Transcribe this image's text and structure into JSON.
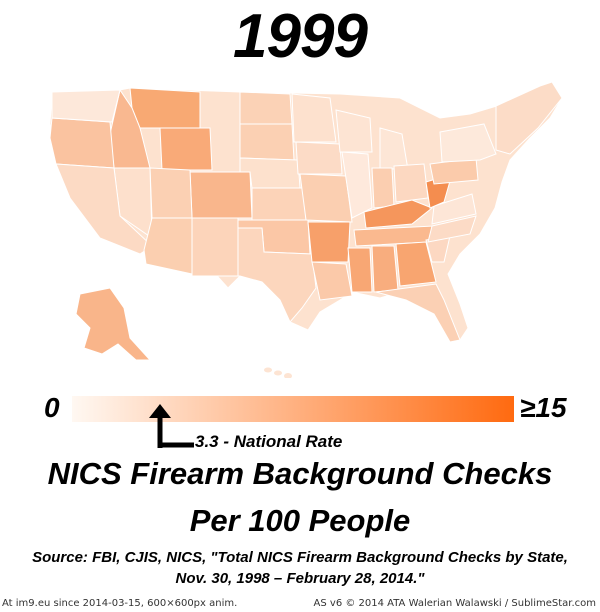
{
  "year": "1999",
  "legend": {
    "min_label": "0",
    "max_label": "≥15",
    "min_value": 0,
    "max_value": 15,
    "color_low": "#fff8f2",
    "color_high": "#ff6a10"
  },
  "national_rate": {
    "value": 3.3,
    "label": "3.3 - National Rate"
  },
  "title": {
    "line1": "NICS Firearm Background Checks",
    "line2": "Per 100 People"
  },
  "source": {
    "line1": "Source: FBI, CJIS, NICS, \"Total NICS Firearm Background Checks by State,",
    "line2": "Nov. 30, 1998 – February 28, 2014.\""
  },
  "footer": {
    "left": "At im9.eu  since 2014-03-15, 600×600px anim.",
    "right": "AS v6 © 2014 ATA Walerian Walawski / SublimeStar.com"
  }
}
